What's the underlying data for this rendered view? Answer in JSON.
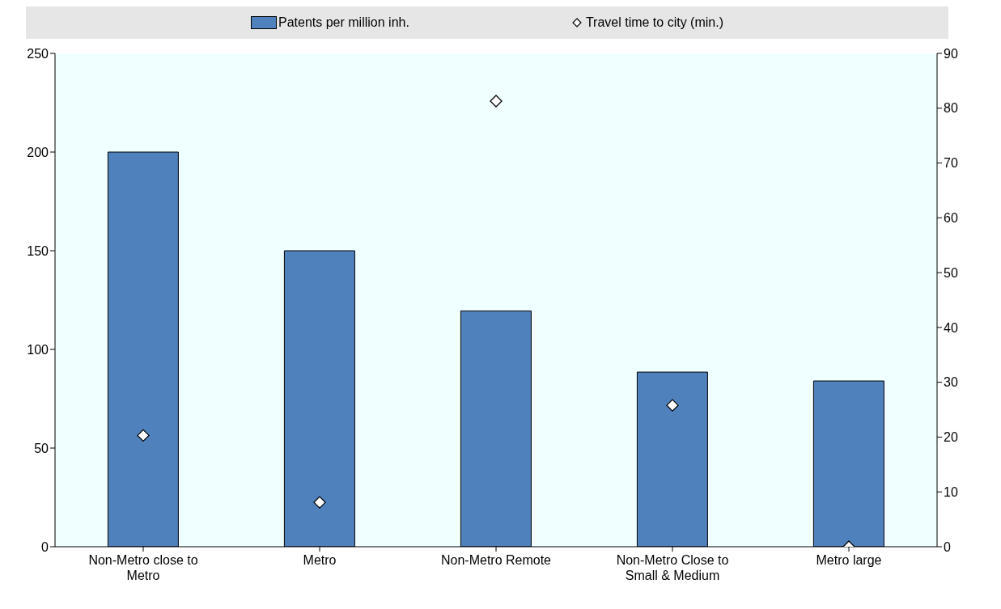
{
  "chart_data": {
    "type": "bar",
    "categories": [
      "Non-Metro close to Metro",
      "Metro",
      "Non-Metro Remote",
      "Non-Metro Close to Small & Medium",
      "Metro large"
    ],
    "series": [
      {
        "name": "Patents per million inh.",
        "color": "#4f81bd",
        "values": [
          200,
          150,
          119.5,
          88.5,
          84
        ]
      },
      {
        "name": "Travel time to city (min.)",
        "type": "scatter",
        "axis": "y2",
        "color": "#ffffff",
        "values": [
          20.3,
          8.1,
          81.3,
          25.8,
          0
        ]
      }
    ],
    "ylim": [
      0,
      250
    ],
    "yticks": [
      0,
      50,
      100,
      150,
      200,
      250
    ],
    "y2lim": [
      0,
      90
    ],
    "y2ticks": [
      0,
      10,
      20,
      30,
      40,
      50,
      60,
      70,
      80,
      90
    ],
    "marker": "diamond",
    "legend": "top",
    "grid": false
  }
}
